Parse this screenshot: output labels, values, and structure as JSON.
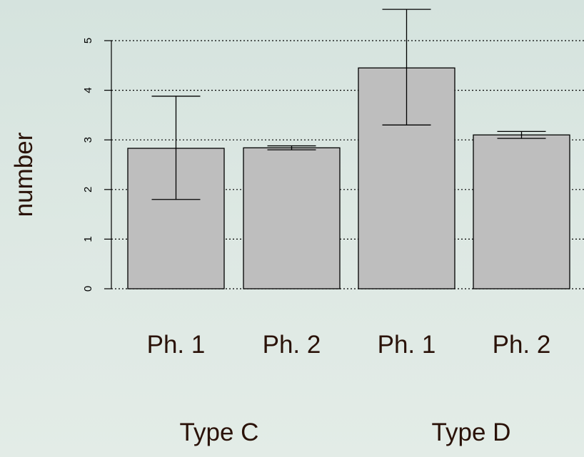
{
  "chart_data": {
    "type": "bar",
    "categories": [
      "Ph. 1",
      "Ph. 2",
      "Ph. 1",
      "Ph. 2"
    ],
    "groups": [
      {
        "label": "Type C",
        "categories": [
          0,
          1
        ]
      },
      {
        "label": "Type D",
        "categories": [
          2,
          3
        ]
      }
    ],
    "values": [
      2.83,
      2.84,
      4.45,
      3.1
    ],
    "error_low": [
      1.8,
      2.8,
      3.3,
      3.03
    ],
    "error_high": [
      3.88,
      2.88,
      5.63,
      3.17
    ],
    "ylabel": "number",
    "ylim": [
      0,
      5
    ],
    "yticks": [
      0,
      1,
      2,
      3,
      4,
      5
    ],
    "grid": "horizontal dotted",
    "colors": {
      "bar": "#bebebe",
      "bar_stroke": "#000000",
      "grid": "#000000",
      "label": "#2a1208"
    }
  }
}
